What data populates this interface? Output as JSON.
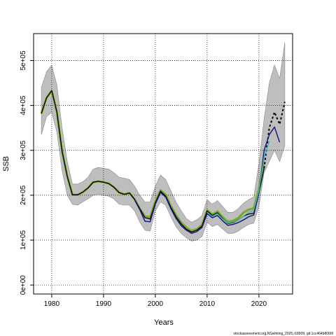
{
  "chart_data": {
    "type": "line",
    "xlabel": "Years",
    "ylabel": "SSB",
    "xlim": [
      1976.5,
      2026.5
    ],
    "ylim": [
      -20000,
      560000
    ],
    "x_ticks": [
      1980,
      1990,
      2000,
      2010,
      2020
    ],
    "x_tick_labels": [
      "1980",
      "1990",
      "2000",
      "2010",
      "2020"
    ],
    "y_ticks": [
      0,
      100000,
      200000,
      300000,
      400000,
      500000
    ],
    "y_tick_labels": [
      "0e+00",
      "1e+05",
      "2e+05",
      "3e+05",
      "4e+05",
      "5e+05"
    ],
    "grid": true,
    "colors": {
      "band": "#bebebe",
      "band_edge": "#888888",
      "band_teal": "#8fd3cf",
      "green": "#7aa82c",
      "black": "#000000",
      "navy": "#1a1a7a",
      "teal": "#3ab6b0"
    },
    "band": {
      "x": [
        1978,
        1979,
        1980,
        1981,
        1982,
        1983,
        1984,
        1985,
        1986,
        1987,
        1988,
        1989,
        1990,
        1991,
        1992,
        1993,
        1994,
        1995,
        1996,
        1997,
        1998,
        1999,
        2000,
        2001,
        2002,
        2003,
        2004,
        2005,
        2006,
        2007,
        2008,
        2009,
        2010,
        2011,
        2012,
        2013,
        2014,
        2015,
        2016,
        2017,
        2018,
        2019,
        2020,
        2021,
        2022,
        2023,
        2024,
        2025
      ],
      "upper": [
        440000,
        475000,
        490000,
        445000,
        350000,
        275000,
        225000,
        225000,
        230000,
        240000,
        258000,
        262000,
        260000,
        258000,
        250000,
        240000,
        238000,
        235000,
        220000,
        200000,
        185000,
        185000,
        220000,
        245000,
        235000,
        210000,
        185000,
        165000,
        148000,
        140000,
        145000,
        155000,
        190000,
        180000,
        188000,
        175000,
        162000,
        162000,
        170000,
        182000,
        190000,
        196000,
        270000,
        370000,
        450000,
        490000,
        460000,
        540000
      ],
      "lower": [
        335000,
        375000,
        385000,
        340000,
        255000,
        200000,
        180000,
        178000,
        185000,
        192000,
        200000,
        202000,
        200000,
        198000,
        192000,
        180000,
        178000,
        178000,
        165000,
        140000,
        122000,
        120000,
        165000,
        185000,
        178000,
        152000,
        130000,
        115000,
        105000,
        98000,
        100000,
        108000,
        140000,
        130000,
        135000,
        125000,
        115000,
        115000,
        120000,
        128000,
        135000,
        138000,
        175000,
        250000,
        275000,
        300000,
        275000,
        310000
      ]
    },
    "series": [
      {
        "color": "green",
        "width": 3,
        "x": [
          1978,
          1979,
          1980,
          1981,
          1982,
          1983,
          1984,
          1985,
          1986,
          1987,
          1988,
          1989,
          1990,
          1991,
          1992,
          1993,
          1994,
          1995,
          1996,
          1997,
          1998,
          1999,
          2000,
          2001,
          2002,
          2003,
          2004,
          2005,
          2006,
          2007,
          2008,
          2009,
          2010,
          2011,
          2012,
          2013,
          2014,
          2015,
          2016,
          2017,
          2018,
          2019,
          2020,
          2021
        ],
        "y": [
          382000,
          417000,
          433000,
          385000,
          298000,
          242000,
          201000,
          201000,
          207000,
          216000,
          229000,
          231000,
          229000,
          226000,
          218000,
          206000,
          202000,
          205000,
          191000,
          170000,
          153000,
          151000,
          186000,
          211000,
          201000,
          176000,
          156000,
          139000,
          128000,
          121000,
          124000,
          134000,
          167000,
          157000,
          164000,
          151000,
          141000,
          143000,
          149000,
          161000,
          168000,
          171000,
          215000,
          275000
        ]
      },
      {
        "color": "black",
        "width": 1.3,
        "x": [
          1978,
          1979,
          1980,
          1981,
          1982,
          1983,
          1984,
          1985,
          1986,
          1987,
          1988,
          1989,
          1990,
          1991,
          1992,
          1993,
          1994,
          1995,
          1996,
          1997,
          1998,
          1999,
          2000,
          2001,
          2002,
          2003,
          2004,
          2005,
          2006,
          2007,
          2008,
          2009,
          2010,
          2011,
          2012,
          2013,
          2014,
          2015,
          2016,
          2017,
          2018,
          2019,
          2020,
          2021
        ],
        "y": [
          382000,
          417000,
          433000,
          385000,
          298000,
          242000,
          201000,
          201000,
          207000,
          216000,
          229000,
          231000,
          229000,
          226000,
          218000,
          206000,
          202000,
          205000,
          191000,
          170000,
          150000,
          147000,
          183000,
          209000,
          198000,
          173000,
          152000,
          136000,
          124000,
          118000,
          122000,
          131000,
          165000,
          155000,
          161000,
          148000,
          137000,
          139000,
          145000,
          153000,
          158000,
          160000,
          205000,
          260000
        ]
      },
      {
        "color": "black",
        "width": 2,
        "dash": "3,3",
        "x": [
          2021,
          2022,
          2023,
          2024,
          2025
        ],
        "y": [
          260000,
          350000,
          385000,
          358000,
          408000
        ]
      },
      {
        "color": "navy",
        "width": 1.5,
        "x": [
          1996,
          1997,
          1998,
          1999,
          2000,
          2001,
          2002,
          2003,
          2004,
          2005,
          2006,
          2007,
          2008,
          2009,
          2010,
          2011,
          2012,
          2013,
          2014,
          2015,
          2016,
          2017,
          2018,
          2019,
          2020,
          2021,
          2022,
          2023,
          2024
        ],
        "y": [
          190000,
          168000,
          142000,
          141000,
          180000,
          206000,
          196000,
          170000,
          148000,
          132000,
          122000,
          115000,
          119000,
          128000,
          159000,
          150000,
          155000,
          143000,
          133000,
          135000,
          139000,
          145000,
          152000,
          156000,
          205000,
          300000,
          335000,
          352000,
          318000
        ]
      },
      {
        "color": "teal",
        "width": 1.3,
        "x": [
          2010,
          2011,
          2012,
          2013,
          2014,
          2015,
          2016,
          2017,
          2018,
          2019,
          2020,
          2021,
          2022
        ],
        "y": [
          162000,
          153000,
          159000,
          147000,
          138000,
          140000,
          145000,
          153000,
          162000,
          166000,
          210000,
          285000,
          320000
        ]
      }
    ]
  },
  "footer": {
    "text": "stockassessment.org,NSwhiting_2025,r18909, git:1cc464b8066f"
  }
}
